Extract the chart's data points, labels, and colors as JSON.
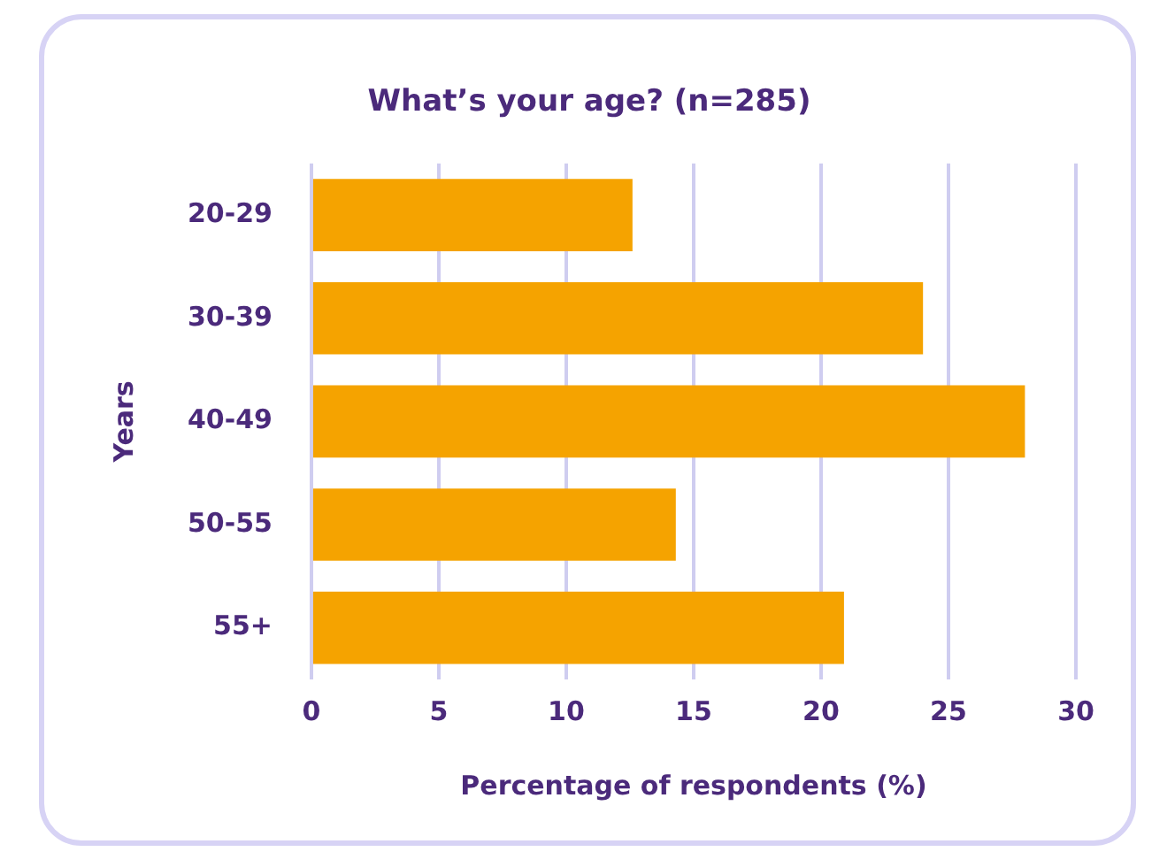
{
  "chart_data": {
    "type": "bar",
    "orientation": "horizontal",
    "title": "What’s your age? (n=285)",
    "xlabel": "Percentage of respondents (%)",
    "ylabel": "Years",
    "categories": [
      "20-29",
      "30-39",
      "40-49",
      "50-55",
      "55+"
    ],
    "values": [
      12.6,
      24.0,
      28.0,
      14.3,
      20.9
    ],
    "color": "#f5a300",
    "xlim": [
      0,
      30
    ],
    "xticks": [
      0,
      5,
      10,
      15,
      20,
      25,
      30
    ],
    "grid": "x",
    "legend": false
  }
}
